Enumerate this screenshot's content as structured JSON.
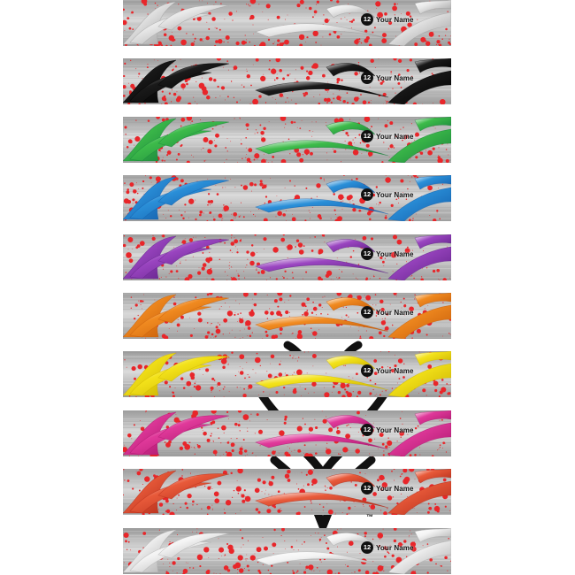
{
  "wraps": [
    {
      "accent": "#e8e8e8",
      "accent_dark": "#9a9a9a",
      "number": "12",
      "name": "Your Name"
    },
    {
      "accent": "#1a1a1a",
      "accent_dark": "#000000",
      "number": "12",
      "name": "Your Name"
    },
    {
      "accent": "#3dbb4a",
      "accent_dark": "#17803a",
      "number": "12",
      "name": "Your Name"
    },
    {
      "accent": "#2a8fd8",
      "accent_dark": "#125ba8",
      "number": "12",
      "name": "Your Name"
    },
    {
      "accent": "#9a45c0",
      "accent_dark": "#5f2187",
      "number": "12",
      "name": "Your Name"
    },
    {
      "accent": "#f08a20",
      "accent_dark": "#c45a08",
      "number": "12",
      "name": "Your Name"
    },
    {
      "accent": "#f3e21a",
      "accent_dark": "#c9b000",
      "number": "12",
      "name": "Your Name"
    },
    {
      "accent": "#e0399a",
      "accent_dark": "#a9166c",
      "number": "12",
      "name": "Your Name"
    },
    {
      "accent": "#e85a3a",
      "accent_dark": "#b02a18",
      "number": "12",
      "name": "Your Name"
    },
    {
      "accent": "#f4f4f4",
      "accent_dark": "#a8a8a8",
      "number": "12",
      "name": "Your Name"
    }
  ],
  "splatter_color": "#e8262a",
  "metal_light": "#d8d8d8",
  "metal_dark": "#9c9c9c",
  "trademark": "™",
  "watermark_icon": "bowhunter-logo-icon"
}
